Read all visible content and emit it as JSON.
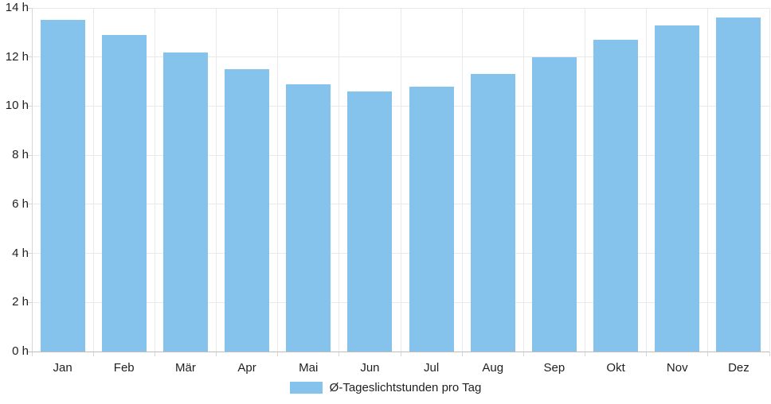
{
  "chart_data": {
    "type": "bar",
    "title": "",
    "xlabel": "",
    "ylabel": "",
    "unit": "h",
    "categories": [
      "Jan",
      "Feb",
      "Mär",
      "Apr",
      "Mai",
      "Jun",
      "Jul",
      "Aug",
      "Sep",
      "Okt",
      "Nov",
      "Dez"
    ],
    "values": [
      13.5,
      12.9,
      12.2,
      11.5,
      10.9,
      10.6,
      10.8,
      11.3,
      12.0,
      12.7,
      13.3,
      13.6
    ],
    "ylim": [
      0,
      14
    ],
    "y_tick_step": 2,
    "y_tick_labels": [
      "0 h",
      "2 h",
      "4 h",
      "6 h",
      "8 h",
      "10 h",
      "12 h",
      "14 h"
    ],
    "grid": true,
    "legend_position": "bottom",
    "legend": [
      {
        "label": "Ø-Tageslichtstunden pro Tag",
        "color": "#85C2EC"
      }
    ],
    "colors": {
      "bar": "#85C2EC",
      "grid": "#E9E9E9",
      "axis_line": "#BDBDBD",
      "tick": "#D6D6D6",
      "text": "#1F1F1F"
    }
  }
}
